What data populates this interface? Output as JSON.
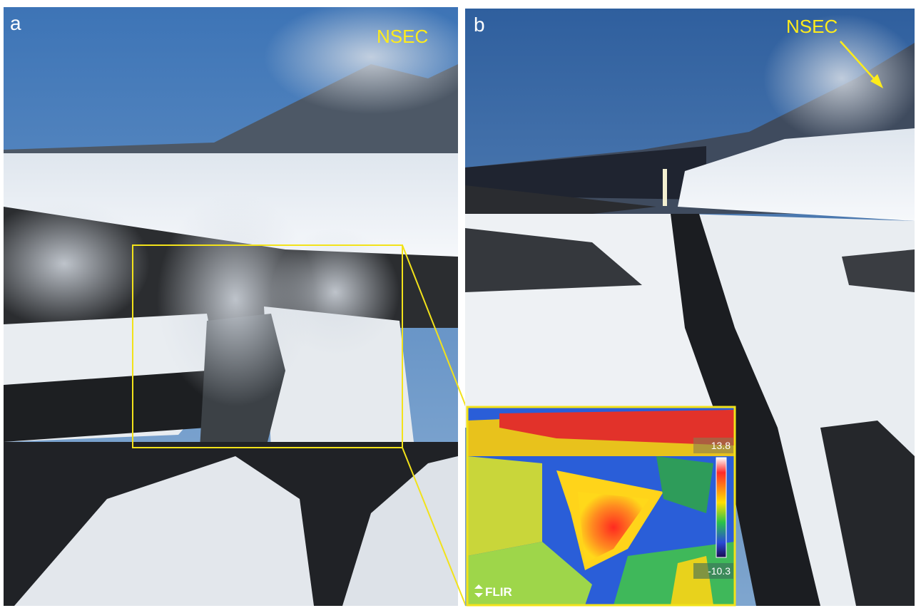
{
  "panels": [
    {
      "label": "a",
      "annotation": "NSEC"
    },
    {
      "label": "b",
      "annotation": "NSEC"
    }
  ],
  "thermal_inset": {
    "max": 13.8,
    "min": -10.3,
    "logo": "FLIR"
  }
}
